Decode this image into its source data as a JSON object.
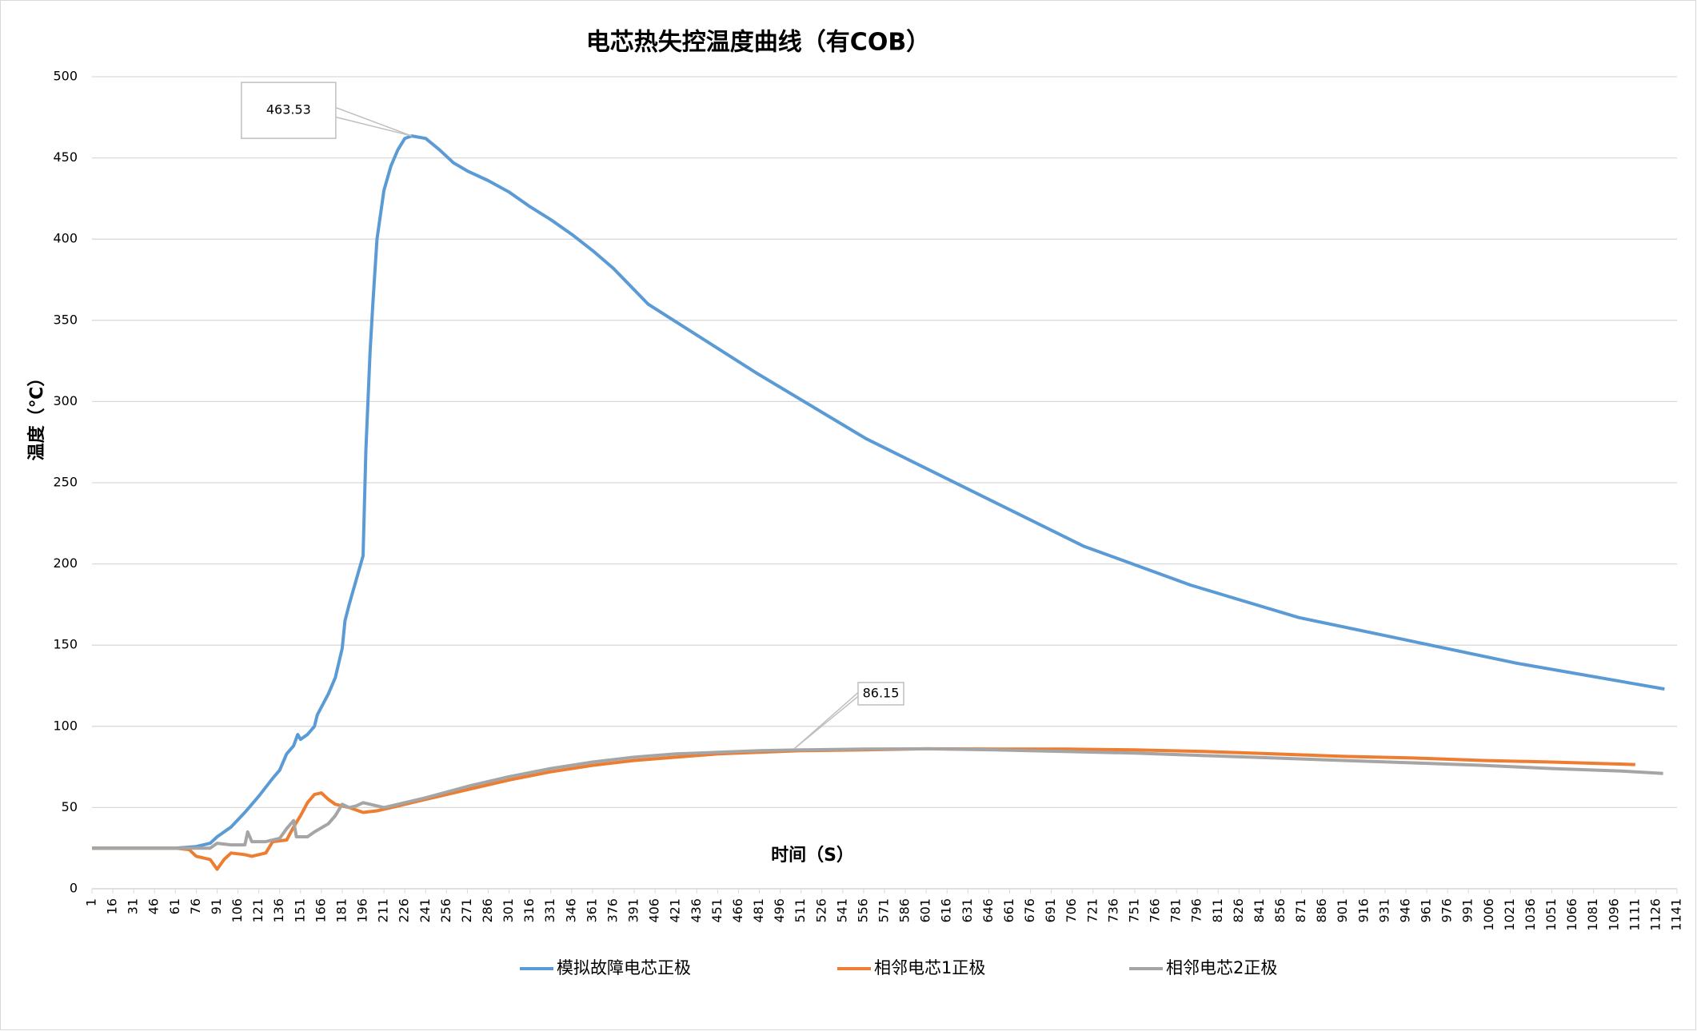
{
  "chart_data": {
    "type": "line",
    "title": "电芯热失控温度曲线（有COB）",
    "x_label": "时间（S）",
    "y_label": "温度（℃）",
    "xlim": [
      1,
      1141
    ],
    "ylim": [
      0,
      500
    ],
    "xticks": [
      1,
      16,
      31,
      46,
      61,
      76,
      91,
      106,
      121,
      136,
      151,
      166,
      181,
      196,
      211,
      226,
      241,
      256,
      271,
      286,
      301,
      316,
      331,
      346,
      361,
      376,
      391,
      406,
      421,
      436,
      451,
      466,
      481,
      496,
      511,
      526,
      541,
      556,
      571,
      586,
      601,
      616,
      631,
      646,
      661,
      676,
      691,
      706,
      721,
      736,
      751,
      766,
      781,
      796,
      811,
      826,
      841,
      856,
      871,
      886,
      901,
      916,
      931,
      946,
      961,
      976,
      991,
      1006,
      1021,
      1036,
      1051,
      1066,
      1081,
      1096,
      1111,
      1126,
      1141
    ],
    "yticks": [
      0,
      50,
      100,
      150,
      200,
      250,
      300,
      350,
      400,
      450,
      500
    ],
    "grid": true,
    "series": [
      {
        "name": "模拟故障电芯正极",
        "color": "#5b9bd5",
        "x": [
          1,
          61,
          76,
          86,
          91,
          101,
          111,
          121,
          131,
          136,
          141,
          146,
          149,
          151,
          156,
          161,
          163,
          171,
          176,
          181,
          183,
          186,
          191,
          196,
          198,
          201,
          203,
          206,
          211,
          216,
          221,
          226,
          231,
          241,
          251,
          261,
          271,
          286,
          301,
          316,
          331,
          346,
          361,
          376,
          401,
          480,
          558,
          636,
          714,
          791,
          869,
          947,
          1025,
          1132
        ],
        "values": [
          25,
          25,
          26,
          28,
          32,
          38,
          47,
          57,
          68,
          73,
          83,
          88,
          95,
          92,
          95,
          100,
          107,
          120,
          130,
          148,
          165,
          175,
          190,
          205,
          270,
          330,
          360,
          400,
          430,
          445,
          455,
          462,
          463.53,
          462,
          455,
          447,
          442,
          436,
          429,
          420,
          412,
          403,
          393,
          382,
          360,
          317,
          277,
          244,
          211,
          187,
          167,
          153,
          139,
          123
        ]
      },
      {
        "name": "相邻电芯1正极",
        "color": "#ed7d31",
        "x": [
          1,
          61,
          71,
          76,
          86,
          91,
          96,
          101,
          111,
          116,
          121,
          126,
          131,
          141,
          146,
          151,
          156,
          161,
          166,
          171,
          176,
          186,
          196,
          206,
          221,
          241,
          271,
          301,
          331,
          361,
          391,
          421,
          451,
          481,
          511,
          556,
          601,
          651,
          701,
          751,
          801,
          851,
          901,
          951,
          1001,
          1051,
          1111
        ],
        "values": [
          25,
          25,
          24,
          20,
          18,
          12,
          18,
          22,
          21,
          20,
          21,
          22,
          29,
          30,
          38,
          45,
          53,
          58,
          59,
          55,
          52,
          50,
          47,
          48,
          51,
          55,
          61,
          67,
          72,
          76,
          79,
          81,
          83,
          84,
          85,
          85.5,
          86.15,
          86,
          86,
          85.5,
          84.5,
          83,
          81.5,
          80.5,
          79,
          78,
          76.5
        ]
      },
      {
        "name": "相邻电芯2正极",
        "color": "#a5a5a5",
        "x": [
          1,
          61,
          86,
          91,
          101,
          111,
          113,
          116,
          126,
          136,
          141,
          146,
          148,
          156,
          161,
          171,
          176,
          181,
          186,
          191,
          196,
          201,
          211,
          226,
          241,
          271,
          301,
          331,
          361,
          391,
          421,
          451,
          481,
          511,
          556,
          601,
          651,
          701,
          751,
          801,
          851,
          901,
          951,
          1001,
          1051,
          1101,
          1131
        ],
        "values": [
          25,
          25,
          25,
          28,
          27,
          27,
          35,
          29,
          29,
          31,
          37,
          42,
          32,
          32,
          35,
          40,
          45,
          52,
          50,
          51,
          53,
          52,
          50,
          53,
          56,
          63,
          69,
          74,
          78,
          81,
          83,
          84,
          85,
          85.5,
          86,
          86.15,
          85.5,
          84.5,
          83.5,
          82,
          80.5,
          79,
          77.5,
          76,
          74,
          72.5,
          71
        ]
      }
    ],
    "annotations": [
      {
        "x": 231,
        "y": 463.53
      },
      {
        "x": 506,
        "y": 86.15
      }
    ]
  }
}
